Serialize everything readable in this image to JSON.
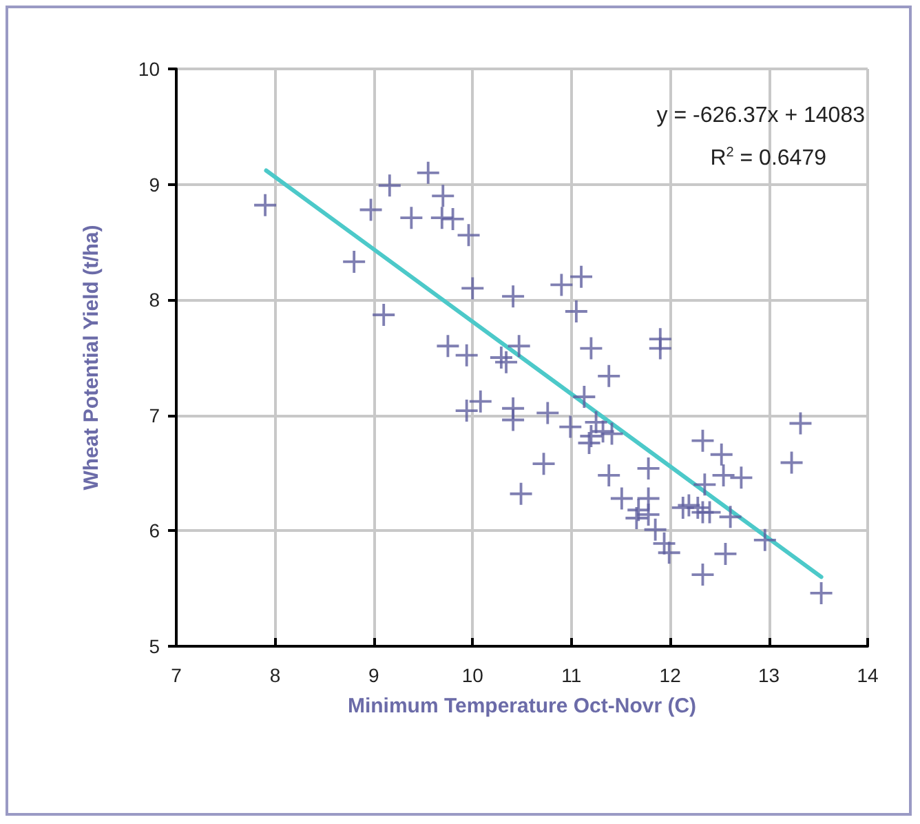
{
  "chart_data": {
    "type": "scatter",
    "xlabel": "Minimum Temperature Oct-Novr (C)",
    "ylabel": "Wheat Potential Yield (t/ha)",
    "xlim": [
      7,
      14
    ],
    "xticks": [
      7,
      8,
      9,
      10,
      11,
      12,
      13,
      14
    ],
    "ylim": [
      5,
      10
    ],
    "yticks": [
      5,
      6,
      7,
      8,
      9,
      10
    ],
    "grid": true,
    "marker": "cross",
    "annotations": [
      "y = -626.37x + 14083",
      "R$^{2}$ = 0.6479"
    ],
    "series": [
      {
        "color": "#5f5f9f",
        "x": [
          7.9,
          8.8,
          8.97,
          9.16,
          9.38,
          9.55,
          9.7,
          9.69,
          9.8,
          9.96,
          10.0,
          10.41,
          9.1,
          10.9,
          11.1,
          11.05,
          9.75,
          9.94,
          10.29,
          10.34,
          10.47,
          11.2,
          11.38,
          11.9,
          11.9,
          9.94,
          10.08,
          10.41,
          10.41,
          10.76,
          11.13,
          10.99,
          11.25,
          11.2,
          11.32,
          11.18,
          11.41,
          10.72,
          10.49,
          11.38,
          11.78,
          11.51,
          11.78,
          11.68,
          11.78,
          12.13,
          11.66,
          11.85,
          11.94,
          11.99,
          12.33,
          12.52,
          12.54,
          12.72,
          12.35,
          12.19,
          12.28,
          12.33,
          12.4,
          12.61,
          12.96,
          12.56,
          12.33,
          13.32,
          13.23,
          13.53
        ],
        "values": [
          8.82,
          8.33,
          8.78,
          8.99,
          8.71,
          9.1,
          8.9,
          8.71,
          8.7,
          8.56,
          8.1,
          8.03,
          7.87,
          8.13,
          8.2,
          7.9,
          7.6,
          7.52,
          7.5,
          7.46,
          7.6,
          7.58,
          7.34,
          7.66,
          7.58,
          7.04,
          7.12,
          7.06,
          6.96,
          7.02,
          7.16,
          6.9,
          6.94,
          6.82,
          6.86,
          6.76,
          6.84,
          6.58,
          6.32,
          6.48,
          6.54,
          6.28,
          6.28,
          6.18,
          6.14,
          6.2,
          6.11,
          6.01,
          5.89,
          5.81,
          6.78,
          6.66,
          6.48,
          6.46,
          6.4,
          6.22,
          6.2,
          6.16,
          6.16,
          6.12,
          5.92,
          5.8,
          5.62,
          6.93,
          6.59,
          5.46
        ]
      },
      {
        "type": "line",
        "color": "#4cc9c9",
        "marker": "none",
        "x": [
          7.91,
          13.53
        ],
        "values": [
          9.12,
          5.6
        ]
      }
    ]
  }
}
